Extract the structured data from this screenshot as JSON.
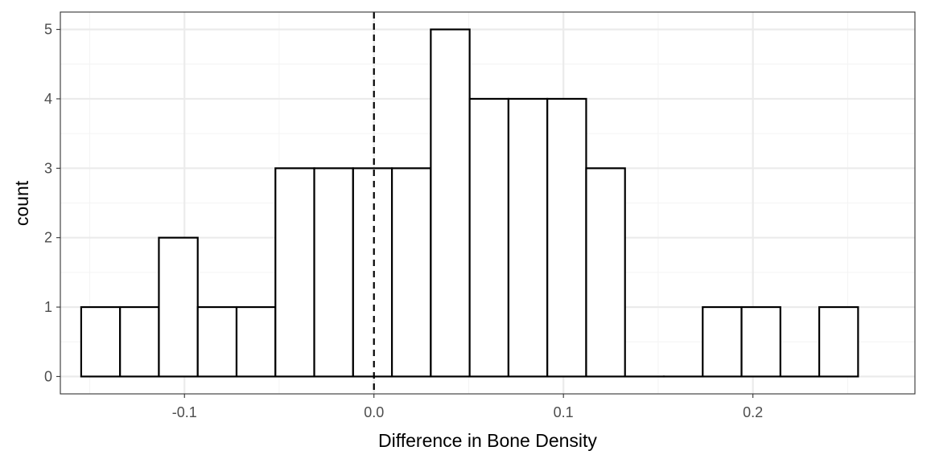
{
  "chart_data": {
    "type": "histogram",
    "title": "",
    "xlabel": "Difference in Bone Density",
    "ylabel": "count",
    "xlim": [
      -0.1655,
      0.2855
    ],
    "ylim": [
      -0.25,
      5.25
    ],
    "x_ticks": [
      -0.1,
      0.0,
      0.1,
      0.2
    ],
    "x_tick_labels": [
      "-0.1",
      "0.0",
      "0.1",
      "0.2"
    ],
    "y_ticks": [
      0,
      1,
      2,
      3,
      4,
      5
    ],
    "y_tick_labels": [
      "0",
      "1",
      "2",
      "3",
      "4",
      "5"
    ],
    "bin_width": 0.0205,
    "bin_starts": [
      -0.1545,
      -0.134,
      -0.1135,
      -0.093,
      -0.0725,
      -0.052,
      -0.0315,
      -0.011,
      0.0095,
      0.03,
      0.0505,
      0.071,
      0.0915,
      0.112,
      0.1325,
      0.153,
      0.1735,
      0.194,
      0.2145,
      0.235
    ],
    "counts": [
      1,
      1,
      2,
      1,
      1,
      3,
      3,
      3,
      3,
      5,
      4,
      4,
      4,
      3,
      0,
      0,
      1,
      1,
      0,
      1
    ],
    "reference_line": {
      "x": 0.0,
      "style": "dashed",
      "color": "#000000"
    },
    "grid": true,
    "theme": "bw",
    "colors": {
      "bar_fill": "#ffffff",
      "bar_stroke": "#000000",
      "grid_major": "#ebebeb",
      "grid_minor": "#f4f4f4",
      "panel_border": "#333333",
      "tick_text": "#4d4d4d"
    }
  }
}
